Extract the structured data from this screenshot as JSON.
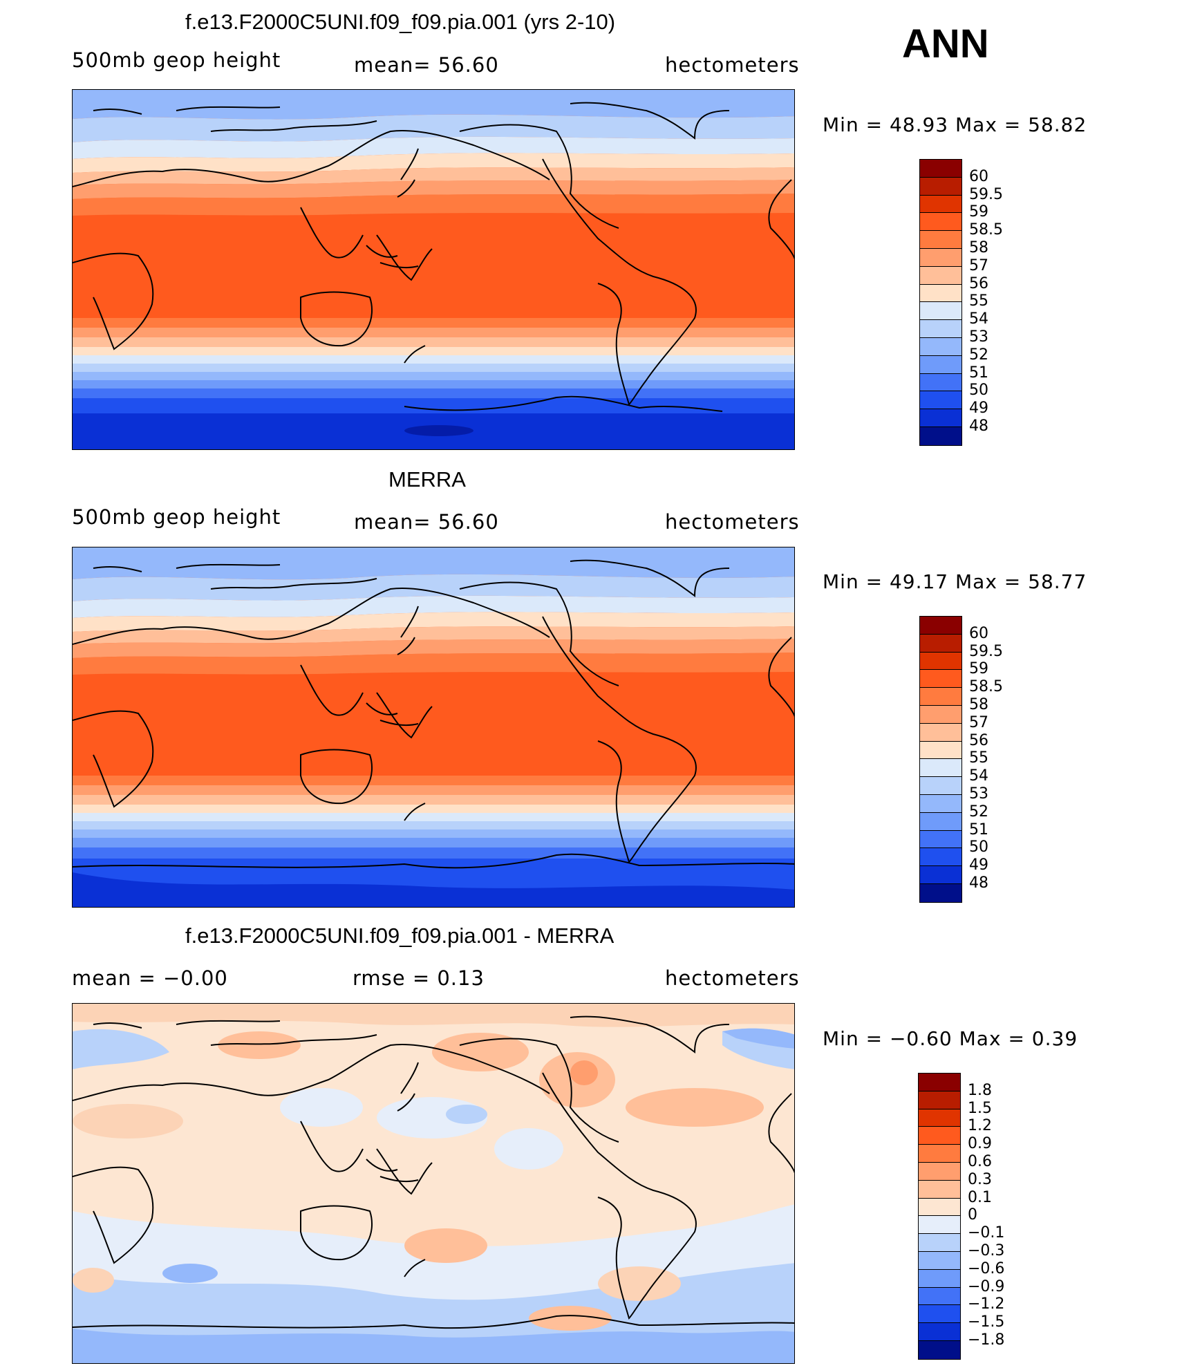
{
  "header": {
    "season": "ANN"
  },
  "panels": [
    {
      "title": "f.e13.F2000C5UNI.f09_f09.pia.001 (yrs 2-10)",
      "left_label": "500mb geop height",
      "center_label": "mean=   56.60",
      "units": "hectometers",
      "min_max": "Min  =    48.93  Max  =    58.82",
      "map_kind": "abs"
    },
    {
      "title": "MERRA",
      "left_label": "500mb geop height",
      "center_label": "mean=   56.60",
      "units": "hectometers",
      "min_max": "Min  =    49.17  Max  =    58.77",
      "map_kind": "abs"
    },
    {
      "title": "f.e13.F2000C5UNI.f09_f09.pia.001 - MERRA",
      "left_label": "mean  =    −0.00",
      "center_label": "rmse  =     0.13",
      "units": "hectometers",
      "min_max": "Min  =   −0.60  Max  =     0.39",
      "map_kind": "diff"
    }
  ],
  "colorbars": {
    "abs": {
      "labels": [
        "60",
        "59.5",
        "59",
        "58.5",
        "58",
        "57",
        "56",
        "55",
        "54",
        "53",
        "52",
        "51",
        "50",
        "49",
        "48"
      ],
      "colors": [
        "#8a0000",
        "#b81d00",
        "#e03400",
        "#ff5a1e",
        "#ff7b3f",
        "#ff9e6e",
        "#ffbf99",
        "#ffe1c7",
        "#dbe9fa",
        "#b8d2fa",
        "#94b8fb",
        "#6f9bfa",
        "#4272f7",
        "#1f50ef",
        "#0a30d5",
        "#000f8a"
      ]
    },
    "diff": {
      "labels": [
        "1.8",
        "1.5",
        "1.2",
        "0.9",
        "0.6",
        "0.3",
        "0.1",
        "0",
        "−0.1",
        "−0.3",
        "−0.6",
        "−0.9",
        "−1.2",
        "−1.5",
        "−1.8"
      ],
      "colors": [
        "#8a0000",
        "#b81d00",
        "#e03400",
        "#ff5a1e",
        "#ff7b3f",
        "#ff9e6e",
        "#ffbf99",
        "#fde6d2",
        "#e6eefa",
        "#b8d2fa",
        "#94b8fb",
        "#6f9bfa",
        "#4272f7",
        "#1f50ef",
        "#0a30d5",
        "#000f8a"
      ]
    }
  }
}
